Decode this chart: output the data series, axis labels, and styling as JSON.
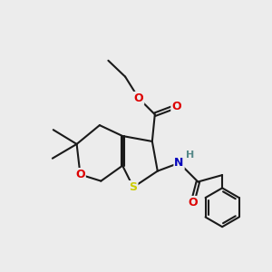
{
  "bg": "#ececec",
  "bc": "#1a1a1a",
  "lw": 1.5,
  "dbo": 0.055,
  "atom_colors": {
    "O": "#dd0000",
    "S": "#cccc00",
    "N": "#0000bb",
    "H": "#558888"
  },
  "afs": 9,
  "xlim": [
    0,
    10
  ],
  "ylim": [
    0,
    10
  ]
}
